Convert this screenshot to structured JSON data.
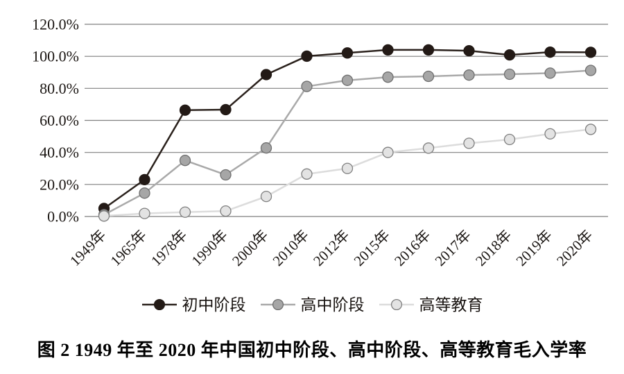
{
  "figure": {
    "caption": "图 2  1949 年至 2020 年中国初中阶段、高中阶段、高等教育毛入学率"
  },
  "chart_data": {
    "type": "line",
    "title": "",
    "xlabel": "",
    "ylabel": "",
    "categories": [
      "1949年",
      "1965年",
      "1978年",
      "1990年",
      "2000年",
      "2010年",
      "2012年",
      "2015年",
      "2016年",
      "2017年",
      "2018年",
      "2019年",
      "2020年"
    ],
    "series": [
      {
        "key": "junior-middle",
        "name": "初中阶段",
        "values": [
          5.0,
          23.0,
          66.4,
          66.7,
          88.6,
          100.1,
          102.1,
          104.0,
          104.0,
          103.5,
          100.9,
          102.6,
          102.5
        ],
        "line_color": "#2a211c",
        "marker_fill": "#231a16",
        "marker_stroke": "#231a16"
      },
      {
        "key": "senior-high",
        "name": "高中阶段",
        "values": [
          1.1,
          14.6,
          35.0,
          26.0,
          42.8,
          81.2,
          85.0,
          87.0,
          87.5,
          88.3,
          88.8,
          89.5,
          91.2
        ],
        "line_color": "#a9a9a9",
        "marker_fill": "#a6a6a6",
        "marker_stroke": "#6f6f6f"
      },
      {
        "key": "higher-ed",
        "name": "高等教育",
        "values": [
          0.3,
          1.9,
          2.7,
          3.4,
          12.5,
          26.5,
          30.0,
          40.0,
          42.7,
          45.7,
          48.1,
          51.6,
          54.4
        ],
        "line_color": "#dcdcdc",
        "marker_fill": "#e3e3e3",
        "marker_stroke": "#7f7f7f"
      }
    ],
    "ylim": [
      0,
      120
    ],
    "y_tick_step": 20,
    "y_tick_labels": [
      "0.0%",
      "20.0%",
      "40.0%",
      "60.0%",
      "80.0%",
      "100.0%",
      "120.0%"
    ],
    "grid": "horizontal-only",
    "gridline_color": "#7f7f7f",
    "legend_position": "bottom"
  }
}
